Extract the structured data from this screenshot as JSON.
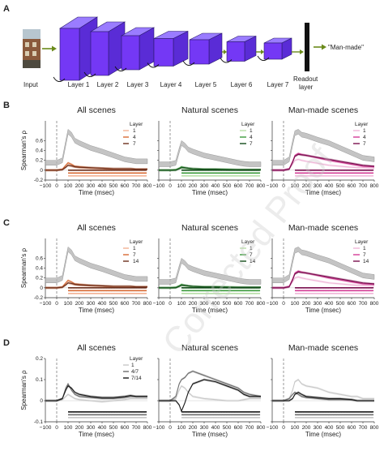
{
  "panel_a": {
    "label": "A",
    "input_label": "Input",
    "layers": [
      "Layer 1",
      "Layer 2",
      "Layer 3",
      "Layer 4",
      "Layer 5",
      "Layer 6",
      "Layer 7"
    ],
    "readout_label_line1": "Readout",
    "readout_label_line2": "layer",
    "output_label": "\"Man-made\""
  },
  "rows": [
    {
      "label": "B",
      "legend_title": "Layer",
      "legend_entries": [
        {
          "label": "1",
          "color": "#f2b295"
        },
        {
          "label": "4",
          "color": "#d86a34"
        },
        {
          "label": "7",
          "color": "#6b2f1c"
        }
      ]
    },
    {
      "label": "C",
      "legend_title": "Layer",
      "legend_entries": [
        {
          "label": "1",
          "color": "#f2b295"
        },
        {
          "label": "7",
          "color": "#e06030"
        },
        {
          "label": "14",
          "color": "#9b2b1c"
        }
      ]
    },
    {
      "label": "D",
      "legend_title": "Layer",
      "legend_entries": [
        {
          "label": "1",
          "color": "#c8c8c8"
        },
        {
          "label": "4/7",
          "color": "#6e6e6e"
        },
        {
          "label": "7/14",
          "color": "#1a1a1a"
        }
      ]
    }
  ],
  "column_titles": [
    "All scenes",
    "Natural scenes",
    "Man-made scenes"
  ],
  "ylabel": "Spearman's ρ",
  "xlabel": "Time (msec)",
  "watermark": "Corrected Proof",
  "palettes": {
    "all": [
      "#f2b295",
      "#d86a34",
      "#6b2f1c"
    ],
    "natural": [
      "#b8dfa8",
      "#3a9a3a",
      "#134d1a"
    ],
    "manmade": [
      "#f0b6d8",
      "#d43c96",
      "#7a1050"
    ],
    "gray": [
      "#c8c8c8",
      "#6e6e6e",
      "#1a1a1a"
    ]
  },
  "chart_data": [
    {
      "type": "line",
      "panel": "B",
      "column": "All scenes",
      "xlabel": "Time (msec)",
      "ylabel": "Spearman's ρ",
      "xlim": [
        -100,
        800
      ],
      "ylim": [
        -0.2,
        1.0
      ],
      "x": [
        -100,
        0,
        50,
        80,
        100,
        130,
        160,
        200,
        300,
        400,
        500,
        600,
        650,
        700,
        800
      ],
      "series": [
        {
          "name": "Noise ceiling",
          "values": [
            0.15,
            0.15,
            0.2,
            0.55,
            0.78,
            0.72,
            0.6,
            0.55,
            0.45,
            0.38,
            0.3,
            0.22,
            0.2,
            0.18,
            0.18
          ]
        },
        {
          "name": "1",
          "values": [
            0.0,
            0.0,
            0.01,
            0.06,
            0.1,
            0.08,
            0.06,
            0.05,
            0.04,
            0.03,
            0.02,
            0.02,
            0.02,
            0.02,
            0.02
          ]
        },
        {
          "name": "4",
          "values": [
            0.0,
            0.0,
            0.02,
            0.1,
            0.15,
            0.12,
            0.08,
            0.07,
            0.05,
            0.04,
            0.03,
            0.03,
            0.03,
            0.02,
            0.02
          ]
        },
        {
          "name": "7",
          "values": [
            0.0,
            0.0,
            0.01,
            0.06,
            0.1,
            0.09,
            0.07,
            0.06,
            0.05,
            0.04,
            0.03,
            0.03,
            0.03,
            0.02,
            0.02
          ]
        }
      ]
    },
    {
      "type": "line",
      "panel": "B",
      "column": "Natural scenes",
      "xlabel": "Time (msec)",
      "xlim": [
        -100,
        800
      ],
      "ylim": [
        -0.2,
        1.0
      ],
      "x": [
        -100,
        0,
        50,
        80,
        100,
        130,
        160,
        200,
        300,
        400,
        500,
        600,
        650,
        700,
        800
      ],
      "series": [
        {
          "name": "Noise ceiling",
          "values": [
            0.12,
            0.12,
            0.15,
            0.4,
            0.55,
            0.5,
            0.42,
            0.38,
            0.3,
            0.25,
            0.2,
            0.15,
            0.13,
            0.12,
            0.12
          ]
        },
        {
          "name": "1",
          "values": [
            0.0,
            0.0,
            0.01,
            0.03,
            0.05,
            0.04,
            0.03,
            0.02,
            0.02,
            0.02,
            0.01,
            0.01,
            0.01,
            0.01,
            0.01
          ]
        },
        {
          "name": "4",
          "values": [
            0.0,
            0.0,
            0.01,
            0.04,
            0.07,
            0.05,
            0.04,
            0.03,
            0.02,
            0.02,
            0.02,
            0.01,
            0.01,
            0.01,
            0.01
          ]
        },
        {
          "name": "7",
          "values": [
            0.0,
            0.0,
            0.0,
            0.03,
            0.05,
            0.05,
            0.04,
            0.03,
            0.02,
            0.02,
            0.01,
            0.01,
            0.01,
            0.01,
            0.01
          ]
        }
      ]
    },
    {
      "type": "line",
      "panel": "B",
      "column": "Man-made scenes",
      "xlabel": "Time (msec)",
      "xlim": [
        -100,
        800
      ],
      "ylim": [
        -0.2,
        1.0
      ],
      "x": [
        -100,
        0,
        50,
        80,
        100,
        130,
        160,
        200,
        300,
        400,
        500,
        600,
        650,
        700,
        800
      ],
      "series": [
        {
          "name": "Noise ceiling",
          "values": [
            0.15,
            0.15,
            0.22,
            0.55,
            0.75,
            0.78,
            0.72,
            0.7,
            0.62,
            0.55,
            0.45,
            0.35,
            0.3,
            0.25,
            0.22
          ]
        },
        {
          "name": "1",
          "values": [
            0.0,
            0.0,
            0.02,
            0.12,
            0.2,
            0.22,
            0.2,
            0.18,
            0.14,
            0.1,
            0.08,
            0.06,
            0.05,
            0.05,
            0.04
          ]
        },
        {
          "name": "4",
          "values": [
            0.0,
            0.0,
            0.03,
            0.18,
            0.3,
            0.34,
            0.32,
            0.3,
            0.25,
            0.2,
            0.16,
            0.12,
            0.1,
            0.08,
            0.07
          ]
        },
        {
          "name": "7",
          "values": [
            0.0,
            0.0,
            0.02,
            0.16,
            0.28,
            0.32,
            0.31,
            0.3,
            0.26,
            0.22,
            0.18,
            0.14,
            0.12,
            0.1,
            0.08
          ]
        }
      ]
    },
    {
      "type": "line",
      "panel": "C",
      "column": "All scenes",
      "xlabel": "Time (msec)",
      "ylabel": "Spearman's ρ",
      "xlim": [
        -100,
        800
      ],
      "ylim": [
        -0.2,
        1.0
      ],
      "x": [
        -100,
        0,
        50,
        80,
        100,
        130,
        160,
        200,
        300,
        400,
        500,
        600,
        650,
        700,
        800
      ],
      "series": [
        {
          "name": "Noise ceiling",
          "values": [
            0.15,
            0.15,
            0.2,
            0.55,
            0.78,
            0.72,
            0.6,
            0.55,
            0.45,
            0.38,
            0.3,
            0.22,
            0.2,
            0.18,
            0.18
          ]
        },
        {
          "name": "1",
          "values": [
            0.0,
            0.0,
            0.01,
            0.06,
            0.1,
            0.08,
            0.06,
            0.05,
            0.04,
            0.03,
            0.02,
            0.02,
            0.02,
            0.02,
            0.02
          ]
        },
        {
          "name": "7",
          "values": [
            0.0,
            0.0,
            0.02,
            0.1,
            0.15,
            0.12,
            0.08,
            0.07,
            0.05,
            0.04,
            0.03,
            0.03,
            0.03,
            0.02,
            0.02
          ]
        },
        {
          "name": "14",
          "values": [
            0.0,
            0.0,
            0.01,
            0.06,
            0.1,
            0.09,
            0.07,
            0.06,
            0.05,
            0.04,
            0.03,
            0.03,
            0.03,
            0.02,
            0.02
          ]
        }
      ]
    },
    {
      "type": "line",
      "panel": "C",
      "column": "Natural scenes",
      "xlabel": "Time (msec)",
      "xlim": [
        -100,
        800
      ],
      "ylim": [
        -0.2,
        1.0
      ],
      "x": [
        -100,
        0,
        50,
        80,
        100,
        130,
        160,
        200,
        300,
        400,
        500,
        600,
        650,
        700,
        800
      ],
      "series": [
        {
          "name": "Noise ceiling",
          "values": [
            0.12,
            0.12,
            0.15,
            0.4,
            0.55,
            0.5,
            0.42,
            0.38,
            0.3,
            0.25,
            0.2,
            0.15,
            0.13,
            0.12,
            0.12
          ]
        },
        {
          "name": "1",
          "values": [
            0.0,
            0.0,
            0.01,
            0.03,
            0.05,
            0.04,
            0.03,
            0.02,
            0.02,
            0.02,
            0.01,
            0.01,
            0.01,
            0.01,
            0.01
          ]
        },
        {
          "name": "7",
          "values": [
            0.0,
            0.0,
            0.01,
            0.04,
            0.07,
            0.05,
            0.04,
            0.03,
            0.02,
            0.02,
            0.02,
            0.01,
            0.01,
            0.01,
            0.01
          ]
        },
        {
          "name": "14",
          "values": [
            0.0,
            0.0,
            0.0,
            0.03,
            0.05,
            0.05,
            0.04,
            0.03,
            0.02,
            0.02,
            0.01,
            0.01,
            0.01,
            0.01,
            0.01
          ]
        }
      ]
    },
    {
      "type": "line",
      "panel": "C",
      "column": "Man-made scenes",
      "xlabel": "Time (msec)",
      "xlim": [
        -100,
        800
      ],
      "ylim": [
        -0.2,
        1.0
      ],
      "x": [
        -100,
        0,
        50,
        80,
        100,
        130,
        160,
        200,
        300,
        400,
        500,
        600,
        650,
        700,
        800
      ],
      "series": [
        {
          "name": "Noise ceiling",
          "values": [
            0.15,
            0.15,
            0.22,
            0.55,
            0.75,
            0.78,
            0.72,
            0.7,
            0.62,
            0.55,
            0.45,
            0.35,
            0.3,
            0.25,
            0.22
          ]
        },
        {
          "name": "1",
          "values": [
            0.0,
            0.0,
            0.02,
            0.12,
            0.2,
            0.22,
            0.2,
            0.18,
            0.14,
            0.1,
            0.08,
            0.06,
            0.05,
            0.05,
            0.04
          ]
        },
        {
          "name": "7",
          "values": [
            0.0,
            0.0,
            0.03,
            0.18,
            0.3,
            0.34,
            0.32,
            0.3,
            0.25,
            0.2,
            0.16,
            0.12,
            0.1,
            0.08,
            0.07
          ]
        },
        {
          "name": "14",
          "values": [
            0.0,
            0.0,
            0.02,
            0.16,
            0.28,
            0.32,
            0.31,
            0.3,
            0.26,
            0.22,
            0.18,
            0.14,
            0.12,
            0.1,
            0.08
          ]
        }
      ]
    },
    {
      "type": "line",
      "panel": "D",
      "column": "All scenes",
      "xlabel": "Time (msec)",
      "ylabel": "Spearman's ρ",
      "xlim": [
        -100,
        800
      ],
      "ylim": [
        -0.1,
        0.2
      ],
      "x": [
        -100,
        0,
        50,
        80,
        100,
        130,
        160,
        200,
        300,
        400,
        500,
        600,
        650,
        700,
        800
      ],
      "series": [
        {
          "name": "1",
          "values": [
            0.0,
            0.0,
            0.005,
            0.02,
            0.03,
            0.02,
            0.01,
            0.005,
            0.0,
            -0.005,
            0.0,
            0.005,
            0.01,
            0.01,
            0.01
          ]
        },
        {
          "name": "4/7",
          "values": [
            0.0,
            0.0,
            0.01,
            0.06,
            0.08,
            0.05,
            0.03,
            0.02,
            0.015,
            0.01,
            0.01,
            0.015,
            0.02,
            0.02,
            0.02
          ]
        },
        {
          "name": "7/14",
          "values": [
            0.0,
            0.0,
            0.01,
            0.05,
            0.07,
            0.06,
            0.04,
            0.03,
            0.02,
            0.015,
            0.015,
            0.02,
            0.025,
            0.02,
            0.02
          ]
        }
      ]
    },
    {
      "type": "line",
      "panel": "D",
      "column": "Natural scenes",
      "xlabel": "Time (msec)",
      "xlim": [
        -100,
        800
      ],
      "ylim": [
        -0.1,
        0.2
      ],
      "x": [
        -100,
        0,
        50,
        80,
        100,
        130,
        160,
        200,
        300,
        400,
        500,
        600,
        650,
        700,
        800
      ],
      "series": [
        {
          "name": "1",
          "values": [
            0.0,
            0.0,
            0.01,
            0.05,
            0.07,
            0.06,
            0.04,
            0.02,
            0.01,
            0.005,
            0.0,
            0.0,
            0.005,
            0.01,
            0.01
          ]
        },
        {
          "name": "4/7",
          "values": [
            0.0,
            0.0,
            0.02,
            0.08,
            0.1,
            0.11,
            0.13,
            0.14,
            0.12,
            0.1,
            0.08,
            0.06,
            0.04,
            0.03,
            0.02
          ]
        },
        {
          "name": "7/14",
          "values": [
            0.0,
            0.0,
            0.0,
            -0.02,
            -0.05,
            -0.01,
            0.04,
            0.08,
            0.1,
            0.09,
            0.07,
            0.05,
            0.03,
            0.02,
            0.02
          ]
        }
      ]
    },
    {
      "type": "line",
      "panel": "D",
      "column": "Man-made scenes",
      "xlabel": "Time (msec)",
      "xlim": [
        -100,
        800
      ],
      "ylim": [
        -0.1,
        0.2
      ],
      "x": [
        -100,
        0,
        50,
        80,
        100,
        130,
        160,
        200,
        300,
        400,
        500,
        600,
        650,
        700,
        800
      ],
      "series": [
        {
          "name": "1",
          "values": [
            0.0,
            0.0,
            0.01,
            0.05,
            0.09,
            0.1,
            0.08,
            0.07,
            0.06,
            0.04,
            0.03,
            0.02,
            0.02,
            0.01,
            0.01
          ]
        },
        {
          "name": "4/7",
          "values": [
            0.0,
            0.0,
            0.01,
            0.03,
            0.04,
            0.03,
            0.02,
            0.015,
            0.01,
            0.005,
            0.005,
            0.005,
            0.0,
            0.0,
            0.0
          ]
        },
        {
          "name": "7/14",
          "values": [
            0.0,
            0.0,
            0.0,
            0.01,
            0.03,
            0.04,
            0.03,
            0.02,
            0.015,
            0.01,
            0.01,
            0.005,
            0.0,
            0.0,
            0.0
          ]
        }
      ]
    }
  ]
}
